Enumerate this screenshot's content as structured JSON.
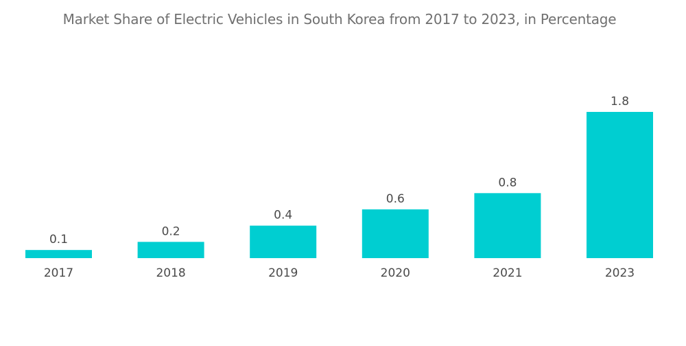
{
  "chart_data": {
    "type": "bar",
    "title": "Market Share of Electric Vehicles in South Korea from 2017 to 2023, in Percentage",
    "xlabel": "",
    "ylabel": "",
    "categories": [
      "2017",
      "2018",
      "2019",
      "2020",
      "2021",
      "2023"
    ],
    "values": [
      0.1,
      0.2,
      0.4,
      0.6,
      0.8,
      1.8
    ],
    "value_labels": [
      "0.1",
      "0.2",
      "0.4",
      "0.6",
      "0.8",
      "1.8"
    ],
    "ylim": [
      0,
      1.8
    ],
    "grid": false,
    "legend": "none",
    "bar_color": "#00CED1"
  }
}
